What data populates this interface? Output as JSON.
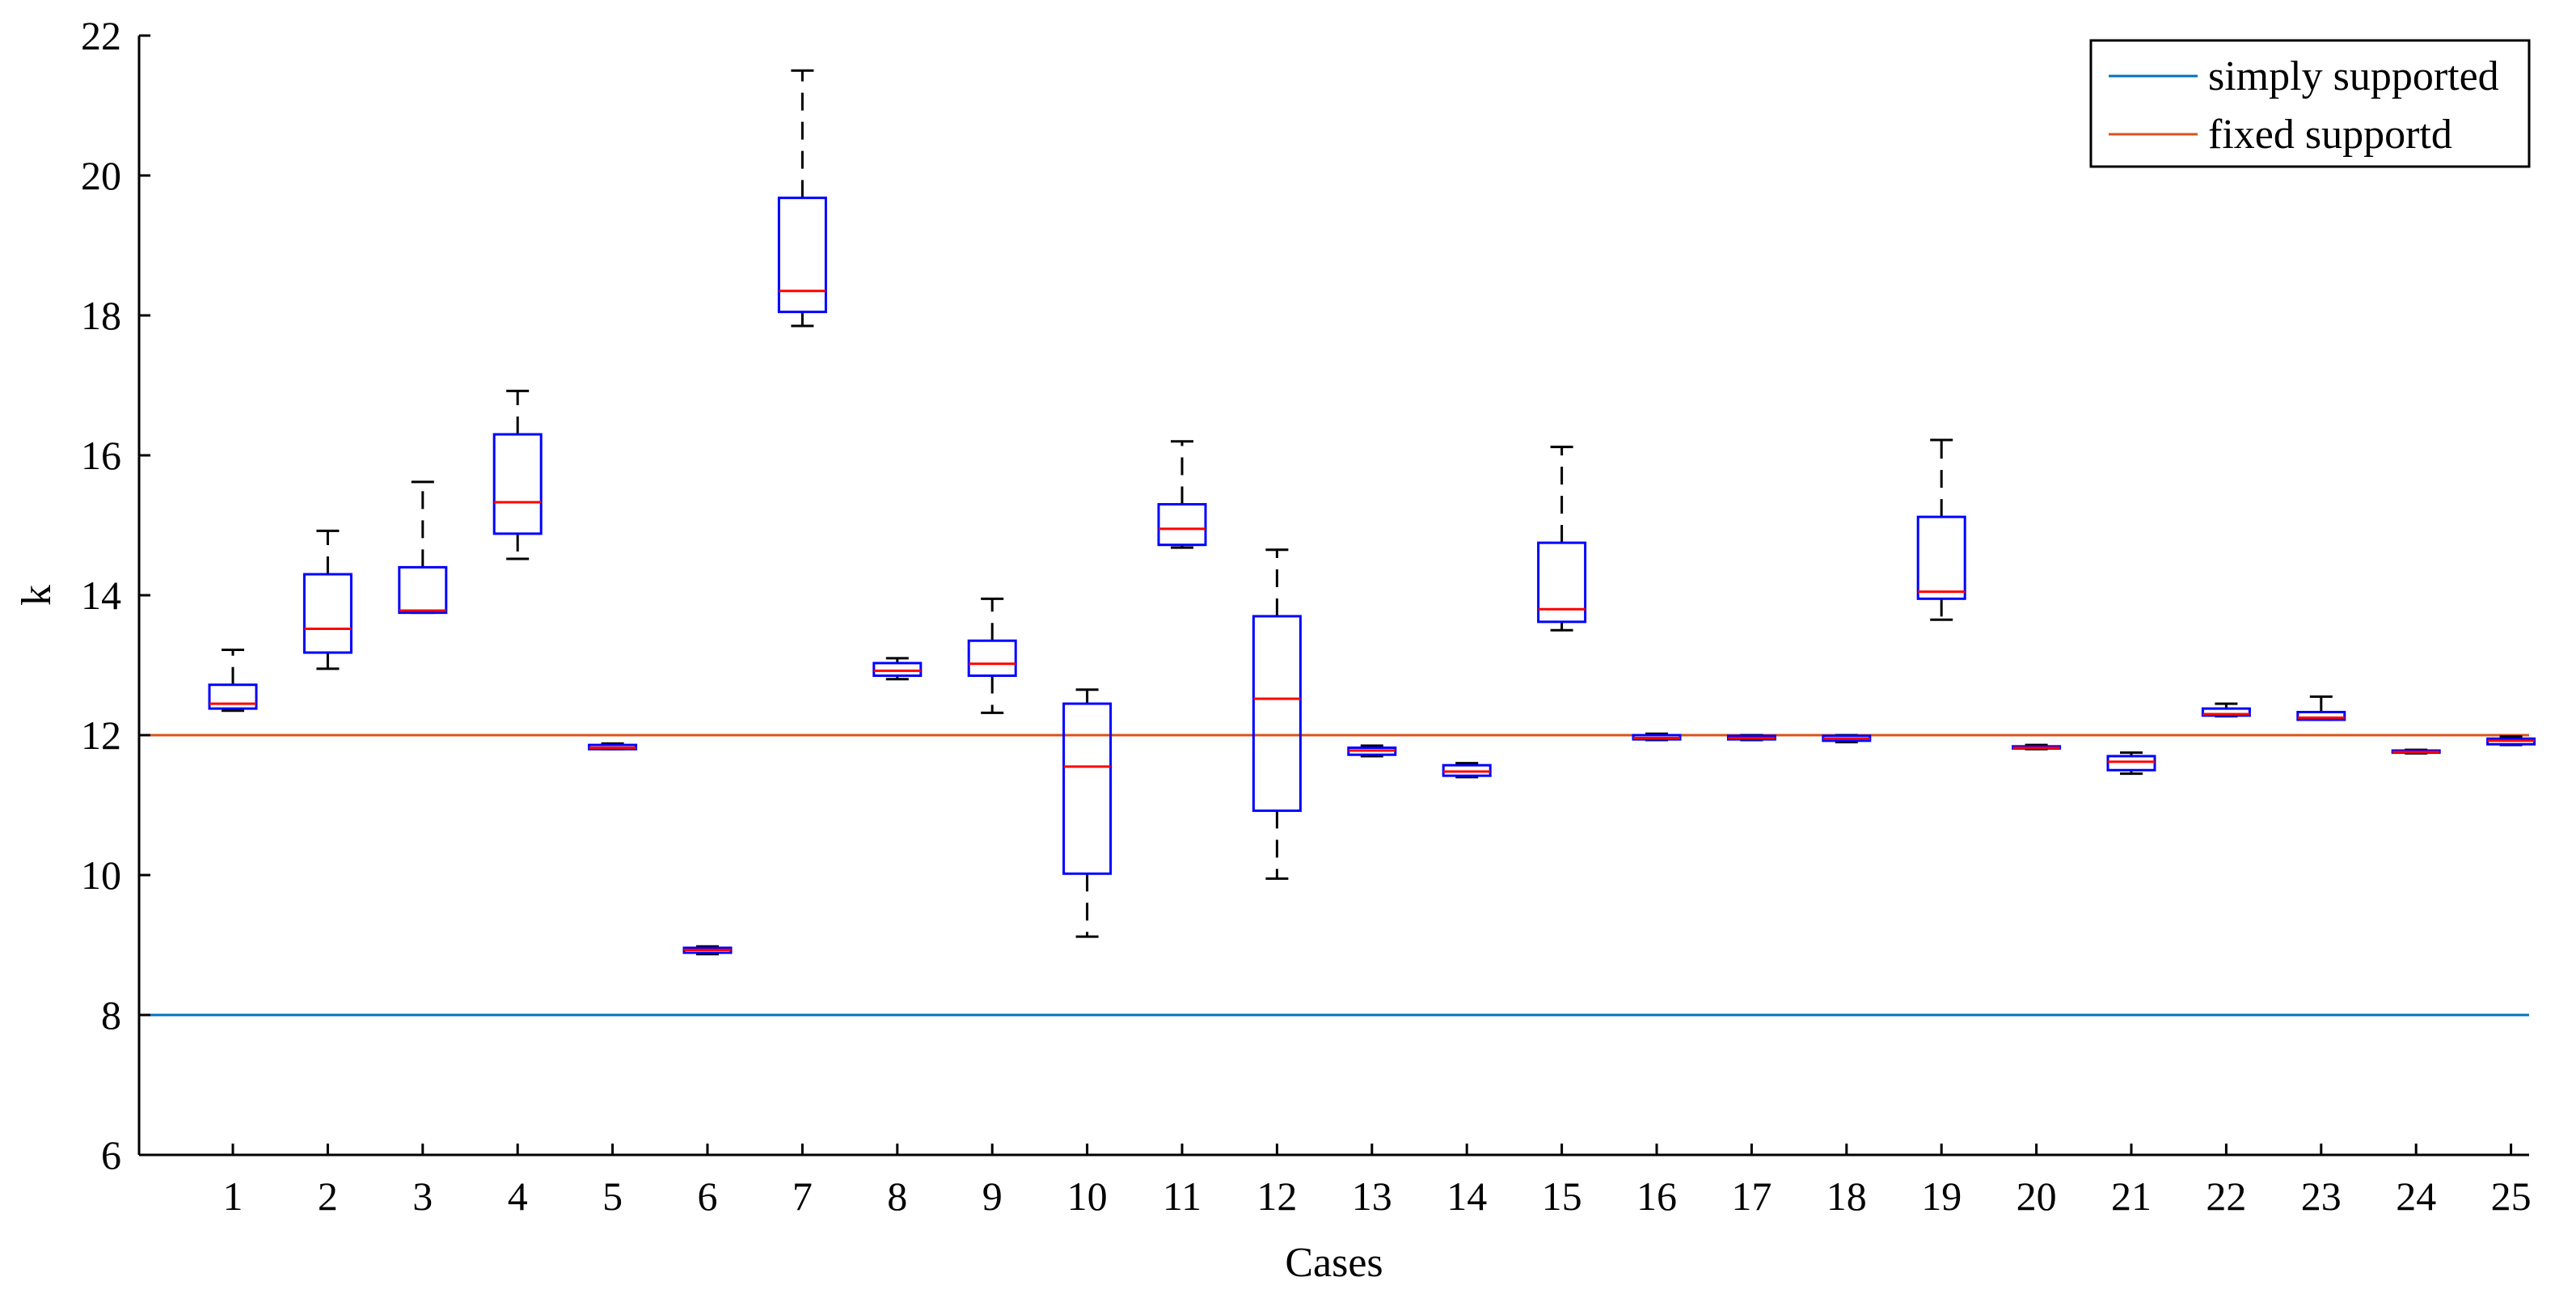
{
  "chart_data": {
    "type": "boxplot",
    "xlabel": "Cases",
    "ylabel": "k",
    "ylim": [
      6,
      22
    ],
    "yticks": [
      6,
      8,
      10,
      12,
      14,
      16,
      18,
      20,
      22
    ],
    "categories": [
      "1",
      "2",
      "3",
      "4",
      "5",
      "6",
      "7",
      "8",
      "9",
      "10",
      "11",
      "12",
      "13",
      "14",
      "15",
      "16",
      "17",
      "18",
      "19",
      "20",
      "21",
      "22",
      "23",
      "24",
      "25"
    ],
    "boxes": [
      {
        "case": "1",
        "min": 12.35,
        "q1": 12.38,
        "median": 12.45,
        "q3": 12.72,
        "max": 13.22
      },
      {
        "case": "2",
        "min": 12.95,
        "q1": 13.18,
        "median": 13.52,
        "q3": 14.3,
        "max": 14.92
      },
      {
        "case": "3",
        "min": 13.75,
        "q1": 13.75,
        "median": 13.78,
        "q3": 14.4,
        "max": 15.62
      },
      {
        "case": "4",
        "min": 14.52,
        "q1": 14.88,
        "median": 15.33,
        "q3": 16.3,
        "max": 16.92
      },
      {
        "case": "5",
        "min": 11.8,
        "q1": 11.8,
        "median": 11.82,
        "q3": 11.86,
        "max": 11.88
      },
      {
        "case": "6",
        "min": 8.87,
        "q1": 8.89,
        "median": 8.93,
        "q3": 8.96,
        "max": 8.98
      },
      {
        "case": "7",
        "min": 17.85,
        "q1": 18.05,
        "median": 18.35,
        "q3": 19.68,
        "max": 21.5
      },
      {
        "case": "8",
        "min": 12.8,
        "q1": 12.85,
        "median": 12.92,
        "q3": 13.03,
        "max": 13.1
      },
      {
        "case": "9",
        "min": 12.32,
        "q1": 12.85,
        "median": 13.02,
        "q3": 13.35,
        "max": 13.95
      },
      {
        "case": "10",
        "min": 9.12,
        "q1": 10.02,
        "median": 11.55,
        "q3": 12.45,
        "max": 12.65
      },
      {
        "case": "11",
        "min": 14.68,
        "q1": 14.72,
        "median": 14.95,
        "q3": 15.3,
        "max": 16.2
      },
      {
        "case": "12",
        "min": 9.95,
        "q1": 10.92,
        "median": 12.52,
        "q3": 13.7,
        "max": 14.65
      },
      {
        "case": "13",
        "min": 11.7,
        "q1": 11.72,
        "median": 11.78,
        "q3": 11.82,
        "max": 11.85
      },
      {
        "case": "14",
        "min": 11.4,
        "q1": 11.42,
        "median": 11.48,
        "q3": 11.57,
        "max": 11.6
      },
      {
        "case": "15",
        "min": 13.5,
        "q1": 13.62,
        "median": 13.8,
        "q3": 14.75,
        "max": 16.12
      },
      {
        "case": "16",
        "min": 11.93,
        "q1": 11.94,
        "median": 11.96,
        "q3": 12.0,
        "max": 12.02
      },
      {
        "case": "17",
        "min": 11.93,
        "q1": 11.94,
        "median": 11.96,
        "q3": 11.99,
        "max": 12.0
      },
      {
        "case": "18",
        "min": 11.9,
        "q1": 11.92,
        "median": 11.95,
        "q3": 11.99,
        "max": 12.0
      },
      {
        "case": "19",
        "min": 13.65,
        "q1": 13.95,
        "median": 14.05,
        "q3": 15.12,
        "max": 16.22
      },
      {
        "case": "20",
        "min": 11.8,
        "q1": 11.81,
        "median": 11.82,
        "q3": 11.84,
        "max": 11.86
      },
      {
        "case": "21",
        "min": 11.45,
        "q1": 11.5,
        "median": 11.62,
        "q3": 11.7,
        "max": 11.75
      },
      {
        "case": "22",
        "min": 12.27,
        "q1": 12.28,
        "median": 12.3,
        "q3": 12.38,
        "max": 12.45
      },
      {
        "case": "23",
        "min": 12.22,
        "q1": 12.22,
        "median": 12.25,
        "q3": 12.33,
        "max": 12.55
      },
      {
        "case": "24",
        "min": 11.74,
        "q1": 11.75,
        "median": 11.76,
        "q3": 11.78,
        "max": 11.79
      },
      {
        "case": "25",
        "min": 11.86,
        "q1": 11.87,
        "median": 11.92,
        "q3": 11.95,
        "max": 11.98
      }
    ],
    "reference_lines": [
      {
        "name": "simply supported",
        "value": 8,
        "color": "#0072BD"
      },
      {
        "name": "fixed supportd",
        "value": 12,
        "color": "#D95319"
      }
    ],
    "legend": {
      "position": "top-right",
      "entries": [
        {
          "label": "simply supported",
          "color": "#0072BD"
        },
        {
          "label": "fixed supportd",
          "color": "#D95319"
        }
      ]
    },
    "colors": {
      "box": "#0000FF",
      "median": "#FF0000",
      "whisker": "#000000"
    }
  }
}
